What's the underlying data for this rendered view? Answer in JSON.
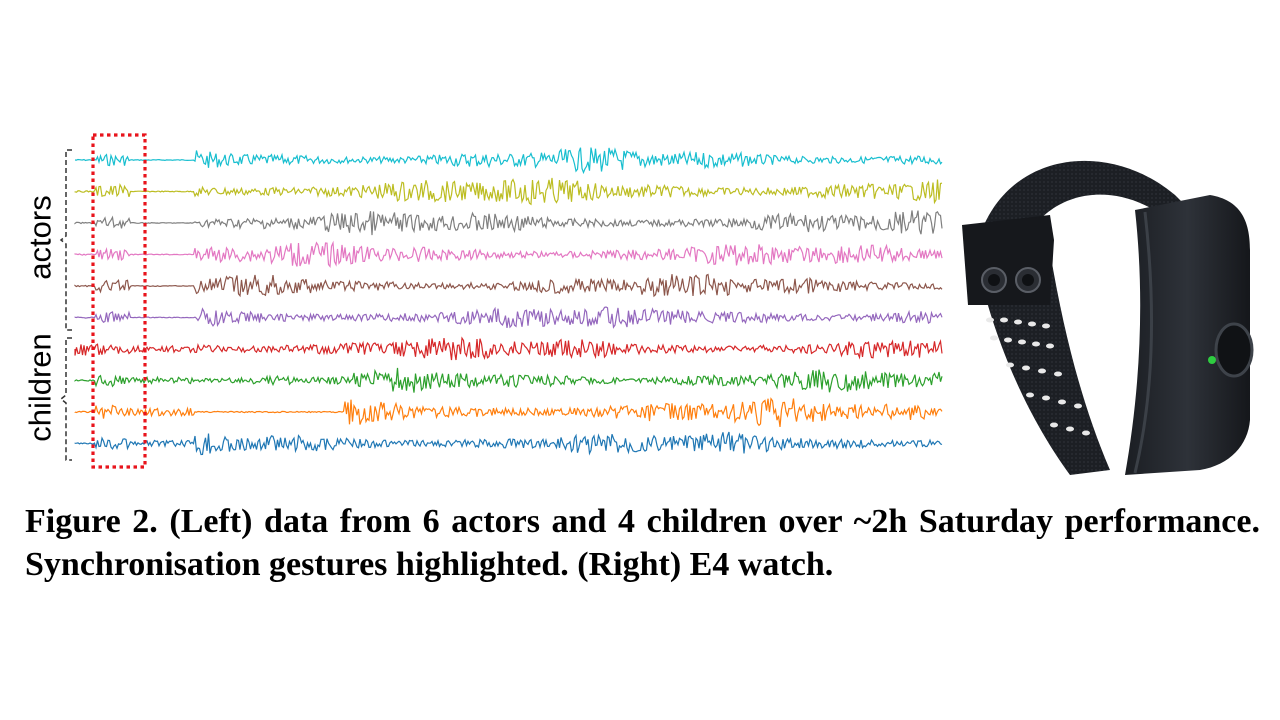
{
  "figure": {
    "group_labels": {
      "actors": "actors",
      "children": "children"
    },
    "caption": "Figure 2.  (Left) data from 6 actors and 4 children over ~2h Saturday performance. Synchronisation gestures highlighted. (Right) E4 watch.",
    "participants": [
      {
        "group": "actors",
        "color": "#17becf"
      },
      {
        "group": "actors",
        "color": "#bcbd22"
      },
      {
        "group": "actors",
        "color": "#7f7f7f"
      },
      {
        "group": "actors",
        "color": "#e377c2"
      },
      {
        "group": "actors",
        "color": "#8c564b"
      },
      {
        "group": "actors",
        "color": "#9467bd"
      },
      {
        "group": "children",
        "color": "#d62728"
      },
      {
        "group": "children",
        "color": "#2ca02c"
      },
      {
        "group": "children",
        "color": "#ff7f0e"
      },
      {
        "group": "children",
        "color": "#1f77b4"
      }
    ],
    "highlight": {
      "color": "#e8141c",
      "description_icon": "sync-gesture-highlight"
    },
    "device": {
      "icon": "e4-wristband-icon",
      "led_color": "#2ecc40"
    }
  }
}
